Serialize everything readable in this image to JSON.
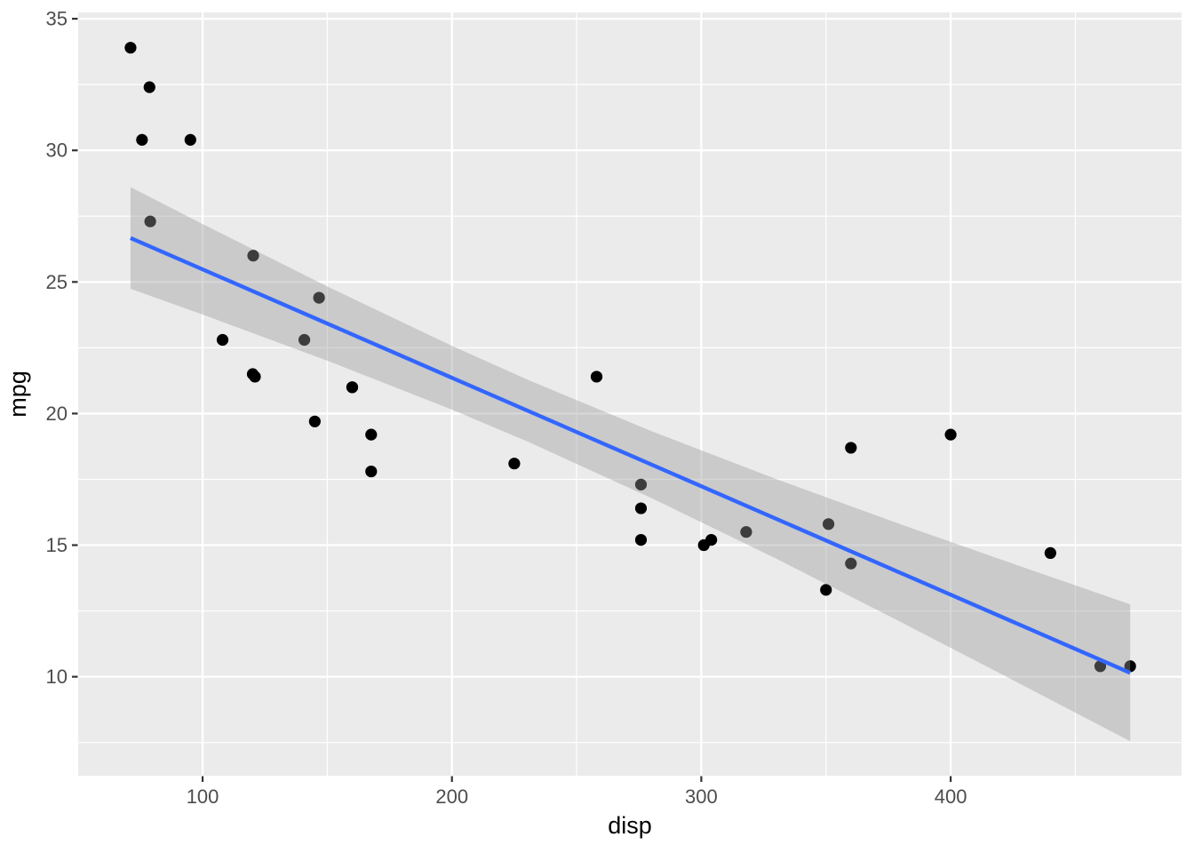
{
  "chart_data": {
    "type": "scatter",
    "title": "",
    "xlabel": "disp",
    "ylabel": "mpg",
    "xlim": [
      50.1,
      492.6
    ],
    "ylim": [
      6.24,
      35.24
    ],
    "x_ticks": [
      100,
      200,
      300,
      400
    ],
    "y_ticks": [
      10,
      15,
      20,
      25,
      30,
      35
    ],
    "x_minor_ticks": [
      150,
      250,
      350,
      450
    ],
    "y_minor_ticks": [
      7.5,
      12.5,
      17.5,
      22.5,
      27.5,
      32.5
    ],
    "grid": true,
    "legend": false,
    "points": [
      [
        160,
        21.0
      ],
      [
        160,
        21.0
      ],
      [
        108,
        22.8
      ],
      [
        258,
        21.4
      ],
      [
        360,
        18.7
      ],
      [
        225,
        18.1
      ],
      [
        360,
        14.3
      ],
      [
        146.7,
        24.4
      ],
      [
        140.8,
        22.8
      ],
      [
        167.6,
        19.2
      ],
      [
        167.6,
        17.8
      ],
      [
        275.8,
        16.4
      ],
      [
        275.8,
        17.3
      ],
      [
        275.8,
        15.2
      ],
      [
        472,
        10.4
      ],
      [
        460,
        10.4
      ],
      [
        440,
        14.7
      ],
      [
        78.7,
        32.4
      ],
      [
        75.7,
        30.4
      ],
      [
        71.1,
        33.9
      ],
      [
        120.1,
        21.5
      ],
      [
        318,
        15.5
      ],
      [
        304,
        15.2
      ],
      [
        350,
        13.3
      ],
      [
        400,
        19.2
      ],
      [
        79,
        27.3
      ],
      [
        120.3,
        26.0
      ],
      [
        95.1,
        30.4
      ],
      [
        351,
        15.8
      ],
      [
        145,
        19.7
      ],
      [
        301,
        15.0
      ],
      [
        121,
        21.4
      ]
    ],
    "smooth": {
      "method": "lm",
      "line_x": [
        71.1,
        472
      ],
      "line_y": [
        26.67,
        10.15
      ],
      "ribbon_x": [
        71.1,
        100,
        150,
        200,
        230.7,
        280,
        330,
        380,
        420,
        472
      ],
      "ribbon_upper": [
        28.6,
        27.2,
        24.83,
        22.57,
        21.27,
        19.33,
        17.51,
        15.79,
        14.46,
        12.75
      ],
      "ribbon_lower": [
        24.74,
        23.76,
        22.01,
        20.15,
        18.92,
        16.79,
        14.49,
        12.08,
        10.12,
        7.55
      ]
    },
    "colors": {
      "outer_background": "#FFFFFF",
      "panel_background": "#EBEBEB",
      "grid_major": "#FFFFFF",
      "grid_minor": "#FFFFFF",
      "point": "#000000",
      "smooth_line": "#3366FF",
      "ribbon_fill": "#999999",
      "ribbon_opacity": 0.4,
      "tick_mark": "#333333",
      "tick_label": "#4D4D4D",
      "axis_title": "#000000"
    }
  }
}
